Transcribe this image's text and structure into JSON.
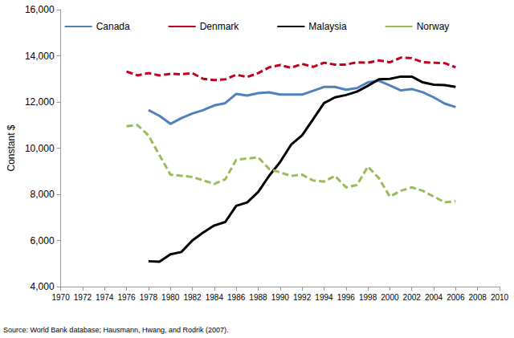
{
  "chart_data": {
    "type": "line",
    "y_label": "Constant $",
    "source": "Source: World Bank database; Hausmann, Hwang, and Rodrik (2007).",
    "x": [
      1976,
      1977,
      1978,
      1979,
      1980,
      1981,
      1982,
      1983,
      1984,
      1985,
      1986,
      1987,
      1988,
      1989,
      1990,
      1991,
      1992,
      1993,
      1994,
      1995,
      1996,
      1997,
      1998,
      1999,
      2000,
      2001,
      2002,
      2003,
      2004,
      2005,
      2006
    ],
    "series": [
      {
        "name": "Canada",
        "color": "#4f81bd",
        "line_style": "solid",
        "values": [
          null,
          null,
          11650,
          11400,
          11050,
          11300,
          11500,
          11650,
          11850,
          11950,
          12350,
          12280,
          12380,
          12420,
          12320,
          12320,
          12320,
          12480,
          12650,
          12650,
          12530,
          12600,
          12850,
          12920,
          12720,
          12500,
          12560,
          12420,
          12200,
          11930,
          11780
        ]
      },
      {
        "name": "Denmark",
        "color": "#c0001e",
        "line_style": "dashed",
        "values": [
          13320,
          13150,
          13250,
          13150,
          13220,
          13200,
          13250,
          13000,
          12950,
          12980,
          13180,
          13080,
          13250,
          13500,
          13600,
          13480,
          13650,
          13520,
          13700,
          13620,
          13620,
          13720,
          13700,
          13800,
          13720,
          13920,
          13900,
          13720,
          13700,
          13680,
          13500
        ]
      },
      {
        "name": "Malaysia",
        "color": "#000000",
        "line_style": "solid",
        "values": [
          null,
          null,
          5100,
          5080,
          5400,
          5500,
          6000,
          6350,
          6650,
          6800,
          7500,
          7650,
          8100,
          8800,
          9400,
          10150,
          10550,
          11250,
          11950,
          12200,
          12300,
          12450,
          12700,
          12980,
          13000,
          13100,
          13100,
          12850,
          12750,
          12730,
          12650
        ]
      },
      {
        "name": "Norway",
        "color": "#9bbb59",
        "line_style": "dashed",
        "values": [
          10950,
          11000,
          10550,
          9700,
          8850,
          8800,
          8750,
          8600,
          8450,
          8650,
          9500,
          9550,
          9600,
          9100,
          8950,
          8800,
          8850,
          8600,
          8550,
          8800,
          8300,
          8400,
          9200,
          8700,
          7900,
          8150,
          8300,
          8150,
          7900,
          7650,
          7700
        ]
      }
    ],
    "xlim": [
      1970,
      2010
    ],
    "xticks": [
      1970,
      1972,
      1974,
      1976,
      1978,
      1980,
      1982,
      1984,
      1986,
      1988,
      1990,
      1992,
      1994,
      1996,
      1998,
      2000,
      2002,
      2004,
      2006,
      2008,
      2010
    ],
    "ylim": [
      4000,
      16000
    ],
    "yticks": [
      {
        "value": 4000,
        "label": "4,000"
      },
      {
        "value": 6000,
        "label": "6,000"
      },
      {
        "value": 8000,
        "label": "8,000"
      },
      {
        "value": 10000,
        "label": "10,000"
      },
      {
        "value": 12000,
        "label": "12,000"
      },
      {
        "value": 14000,
        "label": "14,000"
      },
      {
        "value": 16000,
        "label": "16,000"
      }
    ],
    "grid": false,
    "legend": "top"
  }
}
